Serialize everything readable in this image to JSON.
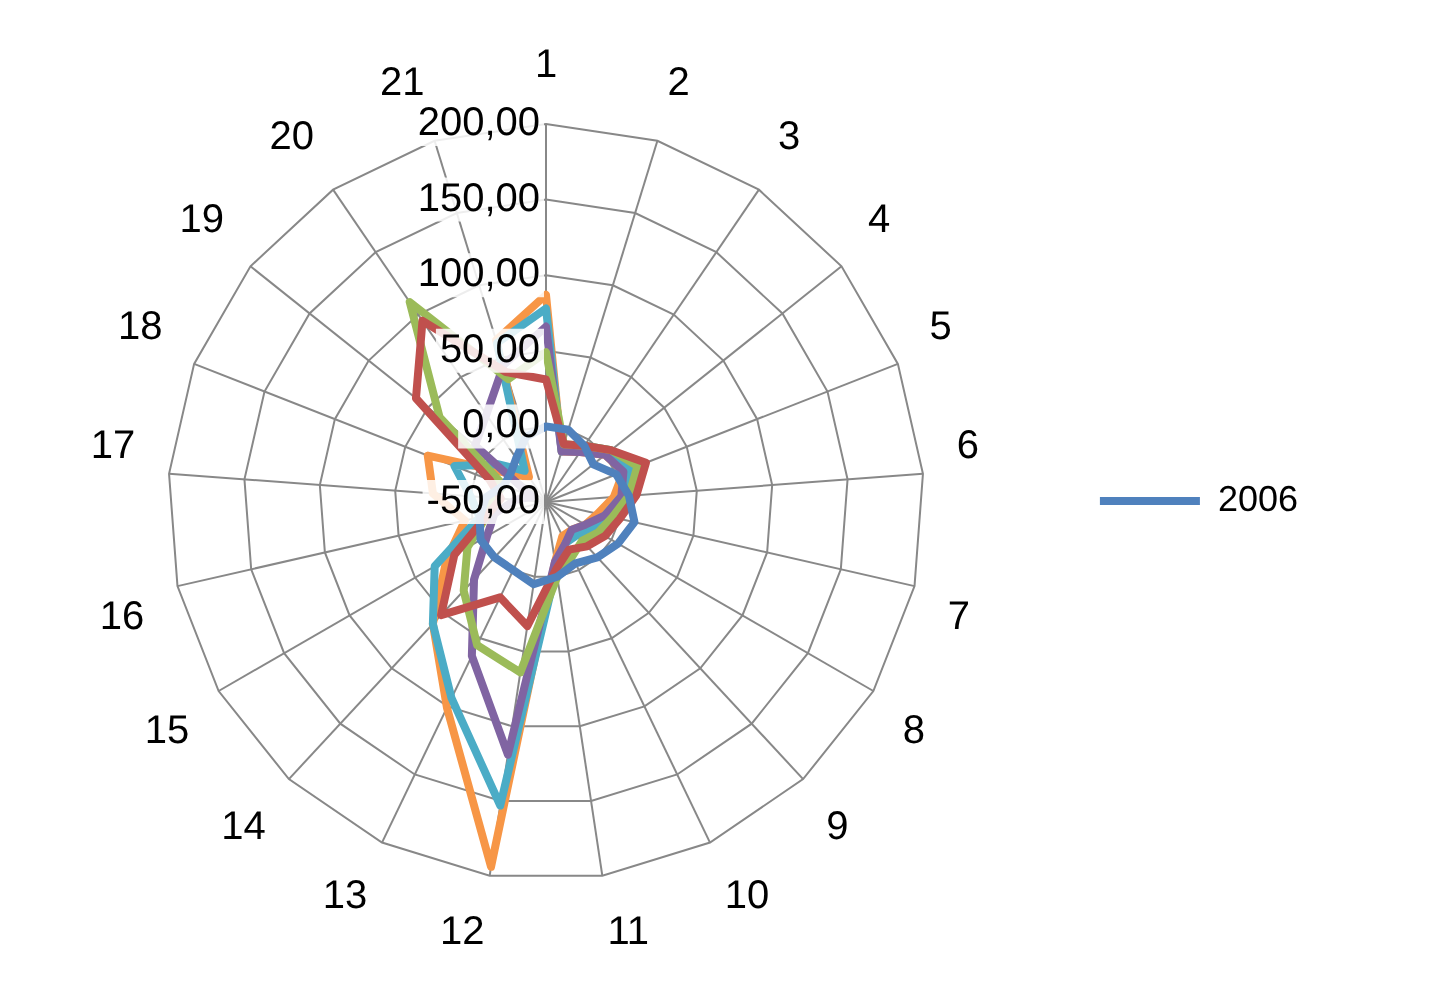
{
  "chart_data": {
    "type": "radar",
    "categories": [
      "1",
      "2",
      "3",
      "4",
      "5",
      "6",
      "7",
      "8",
      "9",
      "10",
      "11",
      "12",
      "13",
      "14",
      "15",
      "16",
      "17",
      "18",
      "19",
      "20",
      "21"
    ],
    "ylim": [
      -50,
      200
    ],
    "yticks": [
      {
        "value": -50,
        "label": "-50,00"
      },
      {
        "value": 0,
        "label": "0,00"
      },
      {
        "value": 50,
        "label": "50,00"
      },
      {
        "value": 100,
        "label": "100,00"
      },
      {
        "value": 150,
        "label": "150,00"
      },
      {
        "value": 200,
        "label": "200,00"
      }
    ],
    "grid": true,
    "legend": "right",
    "marker": "none",
    "series": [
      {
        "name": "2006",
        "color": "#4f81bd",
        "values": [
          0,
          0,
          -5,
          -10,
          0,
          5,
          10,
          5,
          0,
          -5,
          0,
          5,
          0,
          0,
          0,
          -5,
          -10,
          -20,
          -20,
          -15,
          -5
        ]
      },
      {
        "color": "#c0504d",
        "values": [
          31,
          -10,
          -5,
          5,
          21,
          10,
          0,
          -5,
          -10,
          -15,
          -5,
          33,
          20,
          52,
          20,
          -10,
          -20,
          -10,
          60,
          95,
          40
        ]
      },
      {
        "color": "#9bbb59",
        "values": [
          49,
          -10,
          -5,
          5,
          15,
          5,
          -5,
          -10,
          -15,
          -10,
          0,
          64,
          55,
          30,
          10,
          -10,
          -15,
          -20,
          40,
          110,
          35
        ]
      },
      {
        "color": "#8064a2",
        "values": [
          66,
          -15,
          -10,
          0,
          5,
          0,
          -10,
          -20,
          -25,
          -20,
          -10,
          119,
          63,
          20,
          -5,
          -15,
          -30,
          -40,
          10,
          20,
          45
        ]
      },
      {
        "color": "#4bacc6",
        "values": [
          78,
          -15,
          -5,
          5,
          10,
          0,
          -10,
          -15,
          -20,
          -20,
          -5,
          153,
          94,
          60,
          35,
          -5,
          0,
          15,
          -10,
          -25,
          60
        ]
      },
      {
        "color": "#f79646",
        "values": [
          87,
          -15,
          -10,
          0,
          5,
          -5,
          -15,
          -20,
          -25,
          -25,
          -10,
          194,
          101,
          60,
          26,
          5,
          25,
          34,
          -20,
          -30,
          62
        ]
      }
    ]
  }
}
